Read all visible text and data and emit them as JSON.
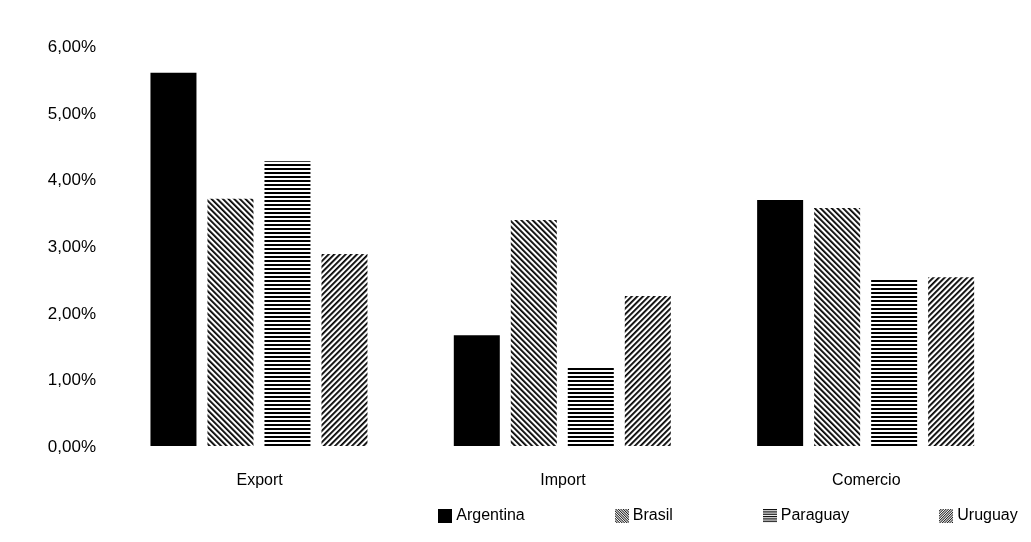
{
  "chart_data": {
    "type": "bar",
    "categories": [
      "Export",
      "Import",
      "Comercio"
    ],
    "series": [
      {
        "name": "Argentina",
        "color": "#000000",
        "values": [
          5.6,
          1.66,
          3.69
        ]
      },
      {
        "name": "Brasil",
        "color": "#000000",
        "values": [
          3.71,
          3.39,
          3.57
        ]
      },
      {
        "name": "Paraguay",
        "color": "#000000",
        "values": [
          4.27,
          1.18,
          2.49
        ]
      },
      {
        "name": "Uruguay",
        "color": "#000000",
        "values": [
          2.88,
          2.25,
          2.53
        ]
      }
    ],
    "ylim": [
      0,
      6
    ],
    "yticks": [
      {
        "value": 0,
        "label": "0,00%"
      },
      {
        "value": 1,
        "label": "1,00%"
      },
      {
        "value": 2,
        "label": "2,00%"
      },
      {
        "value": 3,
        "label": "3,00%"
      },
      {
        "value": 4,
        "label": "4,00%"
      },
      {
        "value": 5,
        "label": "5,00%"
      },
      {
        "value": 6,
        "label": "6,00%"
      }
    ],
    "grid": false,
    "legend": "bottom"
  }
}
